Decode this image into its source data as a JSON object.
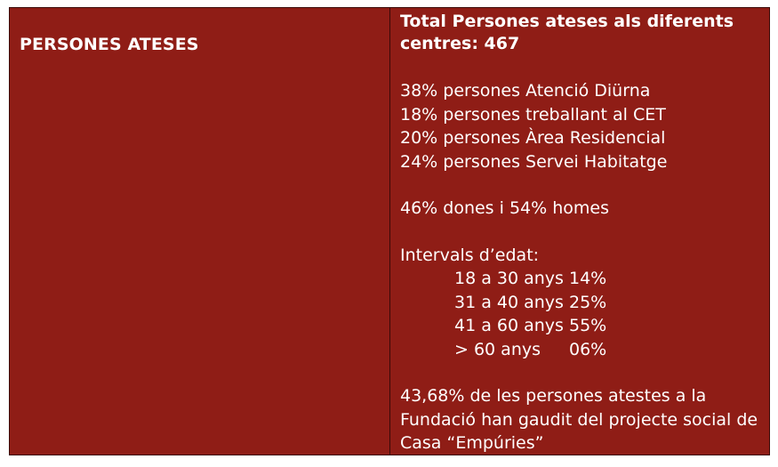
{
  "row_label": "PERSONES ATESES",
  "title": "Total Persones ateses als diferents centres: 467",
  "services": [
    "38% persones Atenció Diürna",
    "18% persones treballant al CET",
    "20% persones Àrea Residencial",
    "24% persones Servei Habitatge"
  ],
  "gender": "46% dones i 54% homes",
  "age_heading": "Intervals d’edat:",
  "age_intervals": [
    {
      "range": "18 a 30 anys",
      "pct": "14%"
    },
    {
      "range": "31 a 40 anys",
      "pct": "25%"
    },
    {
      "range": "41 a 60 anys",
      "pct": "55%"
    },
    {
      "range": "> 60 anys",
      "pct": "06%"
    }
  ],
  "note": "43,68% de les persones atestes a la Fundació han gaudit del projecte social de Casa “Empúries”"
}
